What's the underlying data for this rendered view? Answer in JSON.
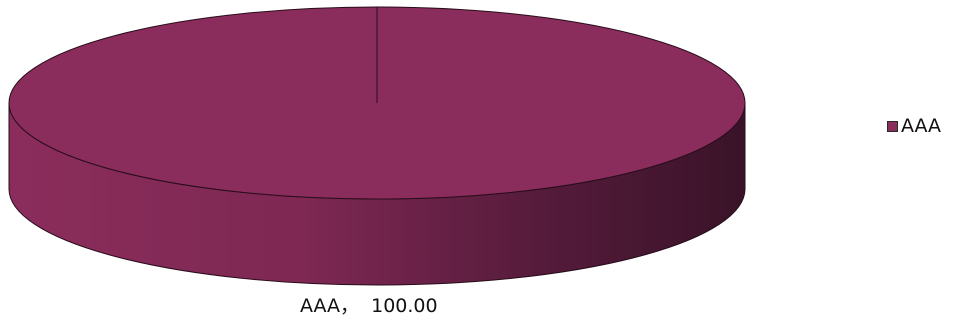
{
  "chart_data": {
    "type": "pie",
    "style": "3d",
    "categories": [
      "AAA"
    ],
    "values": [
      100.0
    ],
    "colors": [
      "#8b2d5c"
    ],
    "title": "",
    "legend": {
      "position": "right",
      "entries": [
        "AAA"
      ]
    },
    "data_labels": [
      "AAA，  100.00"
    ]
  }
}
